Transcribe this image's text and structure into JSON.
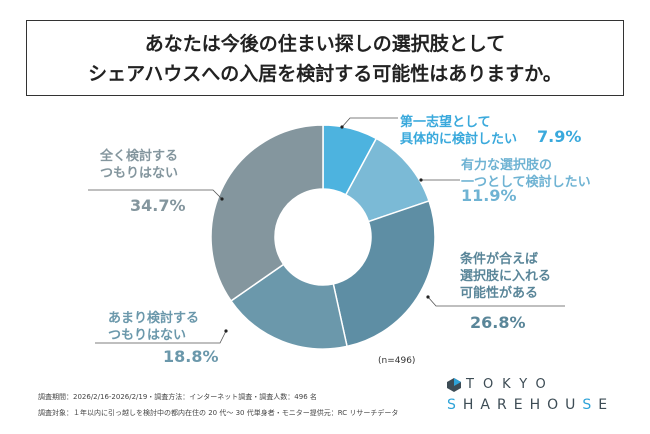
{
  "chart_data": {
    "type": "pie",
    "title": "あなたは今後の住まい探しの選択肢として シェアハウスへの入居を検討する可能性はありますか。",
    "title_lines": [
      "あなたは今後の住まい探しの選択肢として",
      "シェアハウスへの入居を検討する可能性はありますか。"
    ],
    "donut": true,
    "slices": [
      {
        "label": "第一志望として具体的に検討したい",
        "label_lines": [
          "第一志望として",
          "具体的に検討したい"
        ],
        "value": 7.9,
        "value_label": "7.9%",
        "color": "#4db3df"
      },
      {
        "label": "有力な選択肢の一つとして検討したい",
        "label_lines": [
          "有力な選択肢の",
          "一つとして検討したい"
        ],
        "value": 11.9,
        "value_label": "11.9%",
        "color": "#7bbad6"
      },
      {
        "label": "条件が合えば選択肢に入れる可能性がある",
        "label_lines": [
          "条件が合えば",
          "選択肢に入れる",
          "可能性がある"
        ],
        "value": 26.8,
        "value_label": "26.8%",
        "color": "#5e8ea4"
      },
      {
        "label": "あまり検討するつもりはない",
        "label_lines": [
          "あまり検討する",
          "つもりはない"
        ],
        "value": 18.8,
        "value_label": "18.8%",
        "color": "#6b98ab"
      },
      {
        "label": "全く検討するつもりはない",
        "label_lines": [
          "全く検討する",
          "つもりはない"
        ],
        "value": 34.7,
        "value_label": "34.7%",
        "color": "#84969e"
      }
    ],
    "n_label": "(n=496)"
  },
  "footer": {
    "line1": "調査期間：2026/2/16-2026/2/19・調査方法：インターネット調査・調査人数：496 名",
    "line2": "調査対象：１年以内に引っ越しを検討中の都内在住の 20 代～ 30 代単身者・モニター提供元：RC リサーチデータ"
  },
  "logo": {
    "line1": "TOKYO",
    "line2": "SHAREHOUSE"
  }
}
